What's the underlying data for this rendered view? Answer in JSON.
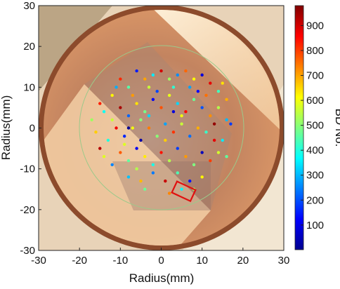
{
  "chart_data": {
    "type": "scatter",
    "title": "",
    "xlabel": "Radius(mm)",
    "ylabel": "Radius(mm)",
    "xlim": [
      -30,
      30
    ],
    "ylim": [
      -30,
      30
    ],
    "xticks": [
      "-30",
      "-20",
      "-10",
      "0",
      "10",
      "20",
      "30"
    ],
    "yticks": [
      "30",
      "20",
      "10",
      "0",
      "-10",
      "-20",
      "-30"
    ],
    "grid": false,
    "background": "photograph of circular copper disk electrode with scattered breakdown spots",
    "guide_circle_radius": 20,
    "highlight_box": {
      "x": [
        3,
        8
      ],
      "y": [
        -17,
        -14
      ],
      "color": "#e01010"
    },
    "colorbar": {
      "label": "BD No.",
      "range": [
        1,
        980
      ],
      "ticks": [
        "100",
        "200",
        "300",
        "400",
        "500",
        "600",
        "700",
        "800",
        "900"
      ],
      "colormap": "jet"
    },
    "points": [
      {
        "x": -12,
        "y": 8,
        "bd": 620
      },
      {
        "x": -10,
        "y": 12,
        "bd": 820
      },
      {
        "x": -8,
        "y": 10,
        "bd": 450
      },
      {
        "x": -6,
        "y": 14,
        "bd": 150
      },
      {
        "x": -4,
        "y": 12,
        "bd": 700
      },
      {
        "x": -2,
        "y": 13,
        "bd": 350
      },
      {
        "x": 0,
        "y": 14,
        "bd": 900
      },
      {
        "x": 2,
        "y": 12,
        "bd": 520
      },
      {
        "x": 4,
        "y": 13,
        "bd": 260
      },
      {
        "x": 6,
        "y": 14,
        "bd": 760
      },
      {
        "x": 8,
        "y": 12,
        "bd": 610
      },
      {
        "x": 10,
        "y": 13,
        "bd": 90
      },
      {
        "x": 12,
        "y": 11,
        "bd": 880
      },
      {
        "x": 14,
        "y": 9,
        "bd": 430
      },
      {
        "x": 16,
        "y": 7,
        "bd": 690
      },
      {
        "x": -14,
        "y": 4,
        "bd": 380
      },
      {
        "x": -12,
        "y": 2,
        "bd": 560
      },
      {
        "x": -10,
        "y": 5,
        "bd": 940
      },
      {
        "x": -8,
        "y": 3,
        "bd": 220
      },
      {
        "x": -6,
        "y": 6,
        "bd": 640
      },
      {
        "x": -4,
        "y": 4,
        "bd": 480
      },
      {
        "x": -2,
        "y": 7,
        "bd": 120
      },
      {
        "x": 0,
        "y": 5,
        "bd": 780
      },
      {
        "x": 2,
        "y": 8,
        "bd": 590
      },
      {
        "x": 4,
        "y": 6,
        "bd": 330
      },
      {
        "x": 6,
        "y": 4,
        "bd": 850
      },
      {
        "x": 8,
        "y": 7,
        "bd": 470
      },
      {
        "x": 10,
        "y": 5,
        "bd": 200
      },
      {
        "x": 12,
        "y": 3,
        "bd": 720
      },
      {
        "x": 14,
        "y": 5,
        "bd": 540
      },
      {
        "x": 16,
        "y": 2,
        "bd": 300
      },
      {
        "x": -16,
        "y": -1,
        "bd": 660
      },
      {
        "x": -13,
        "y": -3,
        "bd": 400
      },
      {
        "x": -11,
        "y": 0,
        "bd": 870
      },
      {
        "x": -9,
        "y": -2,
        "bd": 160
      },
      {
        "x": -7,
        "y": 0,
        "bd": 600
      },
      {
        "x": -5,
        "y": -3,
        "bd": 40
      },
      {
        "x": -3,
        "y": 0,
        "bd": 740
      },
      {
        "x": -1,
        "y": -2,
        "bd": 500
      },
      {
        "x": 1,
        "y": 1,
        "bd": 280
      },
      {
        "x": 3,
        "y": -1,
        "bd": 810
      },
      {
        "x": 5,
        "y": 1,
        "bd": 560
      },
      {
        "x": 7,
        "y": -2,
        "bd": 230
      },
      {
        "x": 9,
        "y": 0,
        "bd": 690
      },
      {
        "x": 11,
        "y": -1,
        "bd": 420
      },
      {
        "x": 13,
        "y": 1,
        "bd": 960
      },
      {
        "x": 15,
        "y": -3,
        "bd": 350
      },
      {
        "x": -14,
        "y": -7,
        "bd": 580
      },
      {
        "x": -12,
        "y": -9,
        "bd": 250
      },
      {
        "x": -10,
        "y": -6,
        "bd": 770
      },
      {
        "x": -8,
        "y": -8,
        "bd": 460
      },
      {
        "x": -6,
        "y": -5,
        "bd": 110
      },
      {
        "x": -4,
        "y": -7,
        "bd": 630
      },
      {
        "x": -2,
        "y": -9,
        "bd": 390
      },
      {
        "x": 0,
        "y": -6,
        "bd": 840
      },
      {
        "x": 2,
        "y": -8,
        "bd": 540
      },
      {
        "x": 4,
        "y": -5,
        "bd": 180
      },
      {
        "x": 6,
        "y": -7,
        "bd": 710
      },
      {
        "x": 8,
        "y": -9,
        "bd": 490
      },
      {
        "x": 10,
        "y": -6,
        "bd": 60
      },
      {
        "x": 12,
        "y": -8,
        "bd": 800
      },
      {
        "x": 14,
        "y": -6,
        "bd": 570
      },
      {
        "x": -8,
        "y": -12,
        "bd": 310
      },
      {
        "x": -5,
        "y": -13,
        "bd": 680
      },
      {
        "x": -2,
        "y": -11,
        "bd": 240
      },
      {
        "x": 1,
        "y": -13,
        "bd": 910
      },
      {
        "x": 4,
        "y": -11,
        "bd": 440
      },
      {
        "x": 7,
        "y": -13,
        "bd": 140
      },
      {
        "x": 10,
        "y": -12,
        "bd": 620
      },
      {
        "x": -8,
        "y": 0,
        "bd": 20
      },
      {
        "x": -6,
        "y": -10,
        "bd": 540
      },
      {
        "x": -4,
        "y": -15,
        "bd": 470
      },
      {
        "x": 2,
        "y": -16,
        "bd": 730
      },
      {
        "x": 5,
        "y": -15,
        "bd": 360
      },
      {
        "x": 8,
        "y": -15,
        "bd": 520
      },
      {
        "x": 9,
        "y": 9,
        "bd": 130
      },
      {
        "x": -3,
        "y": 10,
        "bd": 560
      },
      {
        "x": 3,
        "y": 10,
        "bd": 410
      },
      {
        "x": 11,
        "y": 8,
        "bd": 750
      },
      {
        "x": -11,
        "y": 10,
        "bd": 290
      },
      {
        "x": 15,
        "y": 11,
        "bd": 640
      },
      {
        "x": -15,
        "y": 6,
        "bd": 830
      },
      {
        "x": -17,
        "y": 2,
        "bd": 520
      },
      {
        "x": 17,
        "y": 1,
        "bd": 180
      },
      {
        "x": -15,
        "y": -5,
        "bd": 930
      },
      {
        "x": 16,
        "y": -7,
        "bd": 460
      },
      {
        "x": -3,
        "y": 3,
        "bd": 330
      },
      {
        "x": 5,
        "y": 3,
        "bd": 600
      },
      {
        "x": -7,
        "y": 8,
        "bd": 710
      },
      {
        "x": 7,
        "y": 10,
        "bd": 280
      },
      {
        "x": 1,
        "y": -3,
        "bd": 660
      },
      {
        "x": -1,
        "y": 9,
        "bd": 190
      },
      {
        "x": 13,
        "y": -3,
        "bd": 880
      },
      {
        "x": -9,
        "y": -4,
        "bd": 580
      },
      {
        "x": 3,
        "y": 4,
        "bd": 90
      },
      {
        "x": -5,
        "y": 2,
        "bd": 500
      }
    ]
  }
}
